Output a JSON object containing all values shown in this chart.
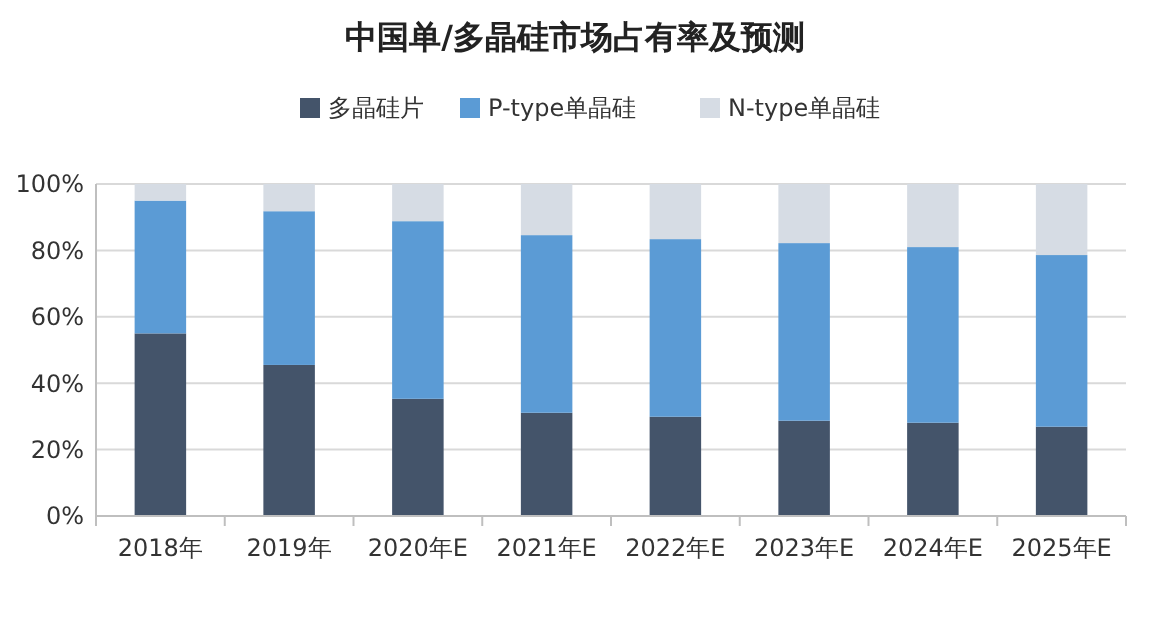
{
  "chart_data": {
    "type": "bar",
    "title": "中国单/多晶硅市场占有率及预测",
    "categories": [
      "2018年",
      "2019年",
      "2020年E",
      "2021年E",
      "2022年E",
      "2023年E",
      "2024年E",
      "2025年E"
    ],
    "stacked": true,
    "series": [
      {
        "name": "多晶硅片",
        "color": "#44546a",
        "values": [
          55,
          45.5,
          35.3,
          31.1,
          29.9,
          28.7,
          28.1,
          26.9
        ]
      },
      {
        "name": "P-type单晶硅",
        "color": "#5b9bd5",
        "values": [
          40,
          46.3,
          53.5,
          53.5,
          53.5,
          53.5,
          52.9,
          51.7
        ]
      },
      {
        "name": "N-type单晶硅",
        "color": "#d6dce4",
        "values": [
          5,
          8.2,
          11.2,
          15.4,
          16.6,
          17.8,
          19,
          21.4
        ]
      }
    ],
    "ylim": [
      0,
      100
    ],
    "yticks": [
      {
        "value": 0,
        "label": "0%"
      },
      {
        "value": 20,
        "label": "20%"
      },
      {
        "value": 40,
        "label": "40%"
      },
      {
        "value": 60,
        "label": "60%"
      },
      {
        "value": 80,
        "label": "80%"
      },
      {
        "value": 100,
        "label": "100%"
      }
    ],
    "grid": "y",
    "legend": "top"
  }
}
